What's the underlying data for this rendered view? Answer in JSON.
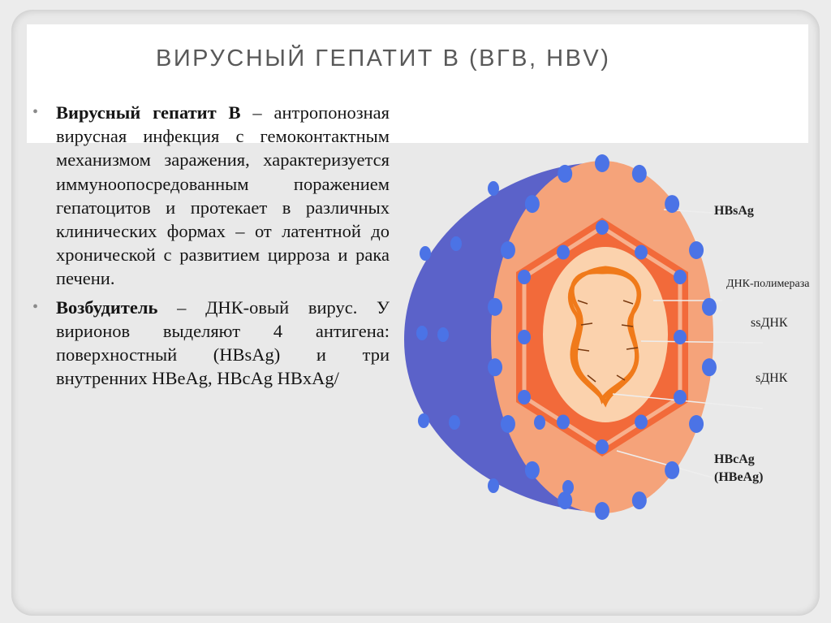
{
  "slide": {
    "title": "ВИРУСНЫЙ ГЕПАТИТ В (ВГВ, HBV)"
  },
  "bullets": [
    {
      "lead": "Вирусный гепатит В",
      "text": " – антропонозная вирусная инфекция с гемоконтактным механизмом заражения, характеризуется иммуноопосредованным поражением гепатоцитов и протекает в различных клинических формах – от латентной до хронической с развитием цирроза и рака печени."
    },
    {
      "lead": "Возбудитель",
      "text": " – ДНК-овый вирус. У вирионов выделяют 4 антигена: поверхностный (HBsAg) и три внутренних HBeAg, HBcAg HBxAg/"
    }
  ],
  "diagram": {
    "labels": {
      "hbsag": "HBsAg",
      "dna_polymerase": "ДНК-полимераза",
      "ssdna": "ssДНК",
      "sdna": "sДНК",
      "hbcag": "HBcAg",
      "hbeag": "(HBeAg)"
    },
    "colors": {
      "outer_shell": "#5b62c9",
      "envelope": "#f5a37a",
      "capsid": "#f26a3a",
      "core": "#fbd2ad",
      "dna": "#f07a1a",
      "antigen_dots": "#4b73e6"
    }
  }
}
